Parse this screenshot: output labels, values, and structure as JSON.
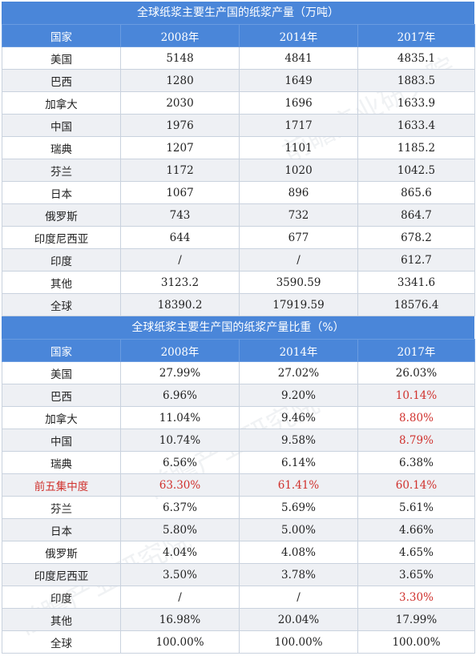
{
  "table1": {
    "title": "全球纸浆主要生产国的纸浆产量（万吨）",
    "headers": [
      "国家",
      "2008年",
      "2014年",
      "2017年"
    ],
    "rows": [
      [
        "美国",
        "5148",
        "4841",
        "4835.1"
      ],
      [
        "巴西",
        "1280",
        "1649",
        "1883.5"
      ],
      [
        "加拿大",
        "2030",
        "1696",
        "1633.9"
      ],
      [
        "中国",
        "1976",
        "1717",
        "1633.4"
      ],
      [
        "瑞典",
        "1207",
        "1101",
        "1185.2"
      ],
      [
        "芬兰",
        "1172",
        "1020",
        "1042.5"
      ],
      [
        "日本",
        "1067",
        "896",
        "865.6"
      ],
      [
        "俄罗斯",
        "743",
        "732",
        "864.7"
      ],
      [
        "印度尼西亚",
        "644",
        "677",
        "678.2"
      ],
      [
        "印度",
        "/",
        "/",
        "612.7"
      ],
      [
        "其他",
        "3123.2",
        "3590.59",
        "3341.6"
      ],
      [
        "全球",
        "18390.2",
        "17919.59",
        "18576.4"
      ]
    ]
  },
  "table2": {
    "title": "全球纸浆主要生产国的纸浆产量比重（%）",
    "headers": [
      "国家",
      "2008年",
      "2014年",
      "2017年"
    ],
    "rows": [
      [
        "美国",
        "27.99%",
        "27.02%",
        "26.03%"
      ],
      [
        "巴西",
        "6.96%",
        "9.20%",
        "10.14%"
      ],
      [
        "加拿大",
        "11.04%",
        "9.46%",
        "8.80%"
      ],
      [
        "中国",
        "10.74%",
        "9.58%",
        "8.79%"
      ],
      [
        "瑞典",
        "6.56%",
        "6.14%",
        "6.38%"
      ],
      [
        "前五集中度",
        "63.30%",
        "61.41%",
        "60.14%"
      ],
      [
        "芬兰",
        "6.37%",
        "5.69%",
        "5.61%"
      ],
      [
        "日本",
        "5.80%",
        "5.00%",
        "4.66%"
      ],
      [
        "俄罗斯",
        "4.04%",
        "4.08%",
        "4.65%"
      ],
      [
        "印度尼西亚",
        "3.50%",
        "3.78%",
        "3.65%"
      ],
      [
        "印度",
        "/",
        "/",
        "3.30%"
      ],
      [
        "其他",
        "16.98%",
        "20.04%",
        "17.99%"
      ],
      [
        "全球",
        "100.00%",
        "100.00%",
        "100.00%"
      ]
    ],
    "highlight_color": "#d0312d",
    "highlight_row_index": 5,
    "highlight_2017_rows": [
      1,
      2,
      3,
      5,
      10
    ]
  },
  "watermark": "前瞻产业研究院"
}
